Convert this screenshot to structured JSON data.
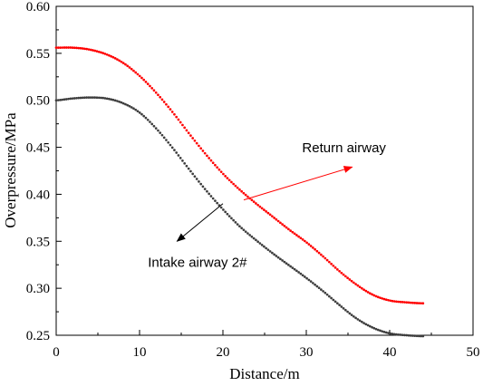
{
  "chart_data": {
    "type": "scatter",
    "xlabel": "Distance/m",
    "ylabel": "Overpressure/MPa",
    "xlim": [
      0,
      50
    ],
    "ylim": [
      0.25,
      0.6
    ],
    "x_ticks": [
      "0",
      "10",
      "20",
      "30",
      "40",
      "50"
    ],
    "y_ticks": [
      "0.25",
      "0.30",
      "0.35",
      "0.40",
      "0.45",
      "0.50",
      "0.55",
      "0.60"
    ],
    "grid": false,
    "legend": "none",
    "series": [
      {
        "name": "Return airway",
        "color": "#ff0000",
        "x": [
          0,
          2,
          4,
          6,
          8,
          10,
          12,
          14,
          16,
          18,
          20,
          22,
          24,
          26,
          28,
          30,
          32,
          34,
          36,
          38,
          40,
          42,
          44
        ],
        "y": [
          0.556,
          0.556,
          0.554,
          0.549,
          0.54,
          0.526,
          0.508,
          0.487,
          0.464,
          0.442,
          0.422,
          0.405,
          0.39,
          0.376,
          0.362,
          0.349,
          0.334,
          0.318,
          0.304,
          0.293,
          0.287,
          0.285,
          0.284
        ]
      },
      {
        "name": "Intake airway 2#",
        "color": "#3d3d3d",
        "x": [
          0,
          2,
          4,
          6,
          8,
          10,
          12,
          14,
          16,
          18,
          20,
          22,
          24,
          26,
          28,
          30,
          32,
          34,
          36,
          38,
          40,
          42,
          44
        ],
        "y": [
          0.5,
          0.502,
          0.503,
          0.502,
          0.497,
          0.487,
          0.47,
          0.449,
          0.426,
          0.404,
          0.384,
          0.366,
          0.351,
          0.337,
          0.324,
          0.311,
          0.297,
          0.282,
          0.268,
          0.258,
          0.252,
          0.25,
          0.249
        ]
      }
    ],
    "annotations": [
      {
        "text": "Return airway",
        "series": 0,
        "arrow_to": [
          35.5,
          0.429
        ],
        "arrow_from": [
          22.5,
          0.394
        ],
        "label_at": [
          29.5,
          0.445
        ]
      },
      {
        "text": "Intake airway 2#",
        "series": 1,
        "arrow_to": [
          14.5,
          0.35
        ],
        "arrow_from": [
          20,
          0.39
        ],
        "label_at": [
          11,
          0.323
        ]
      }
    ]
  }
}
